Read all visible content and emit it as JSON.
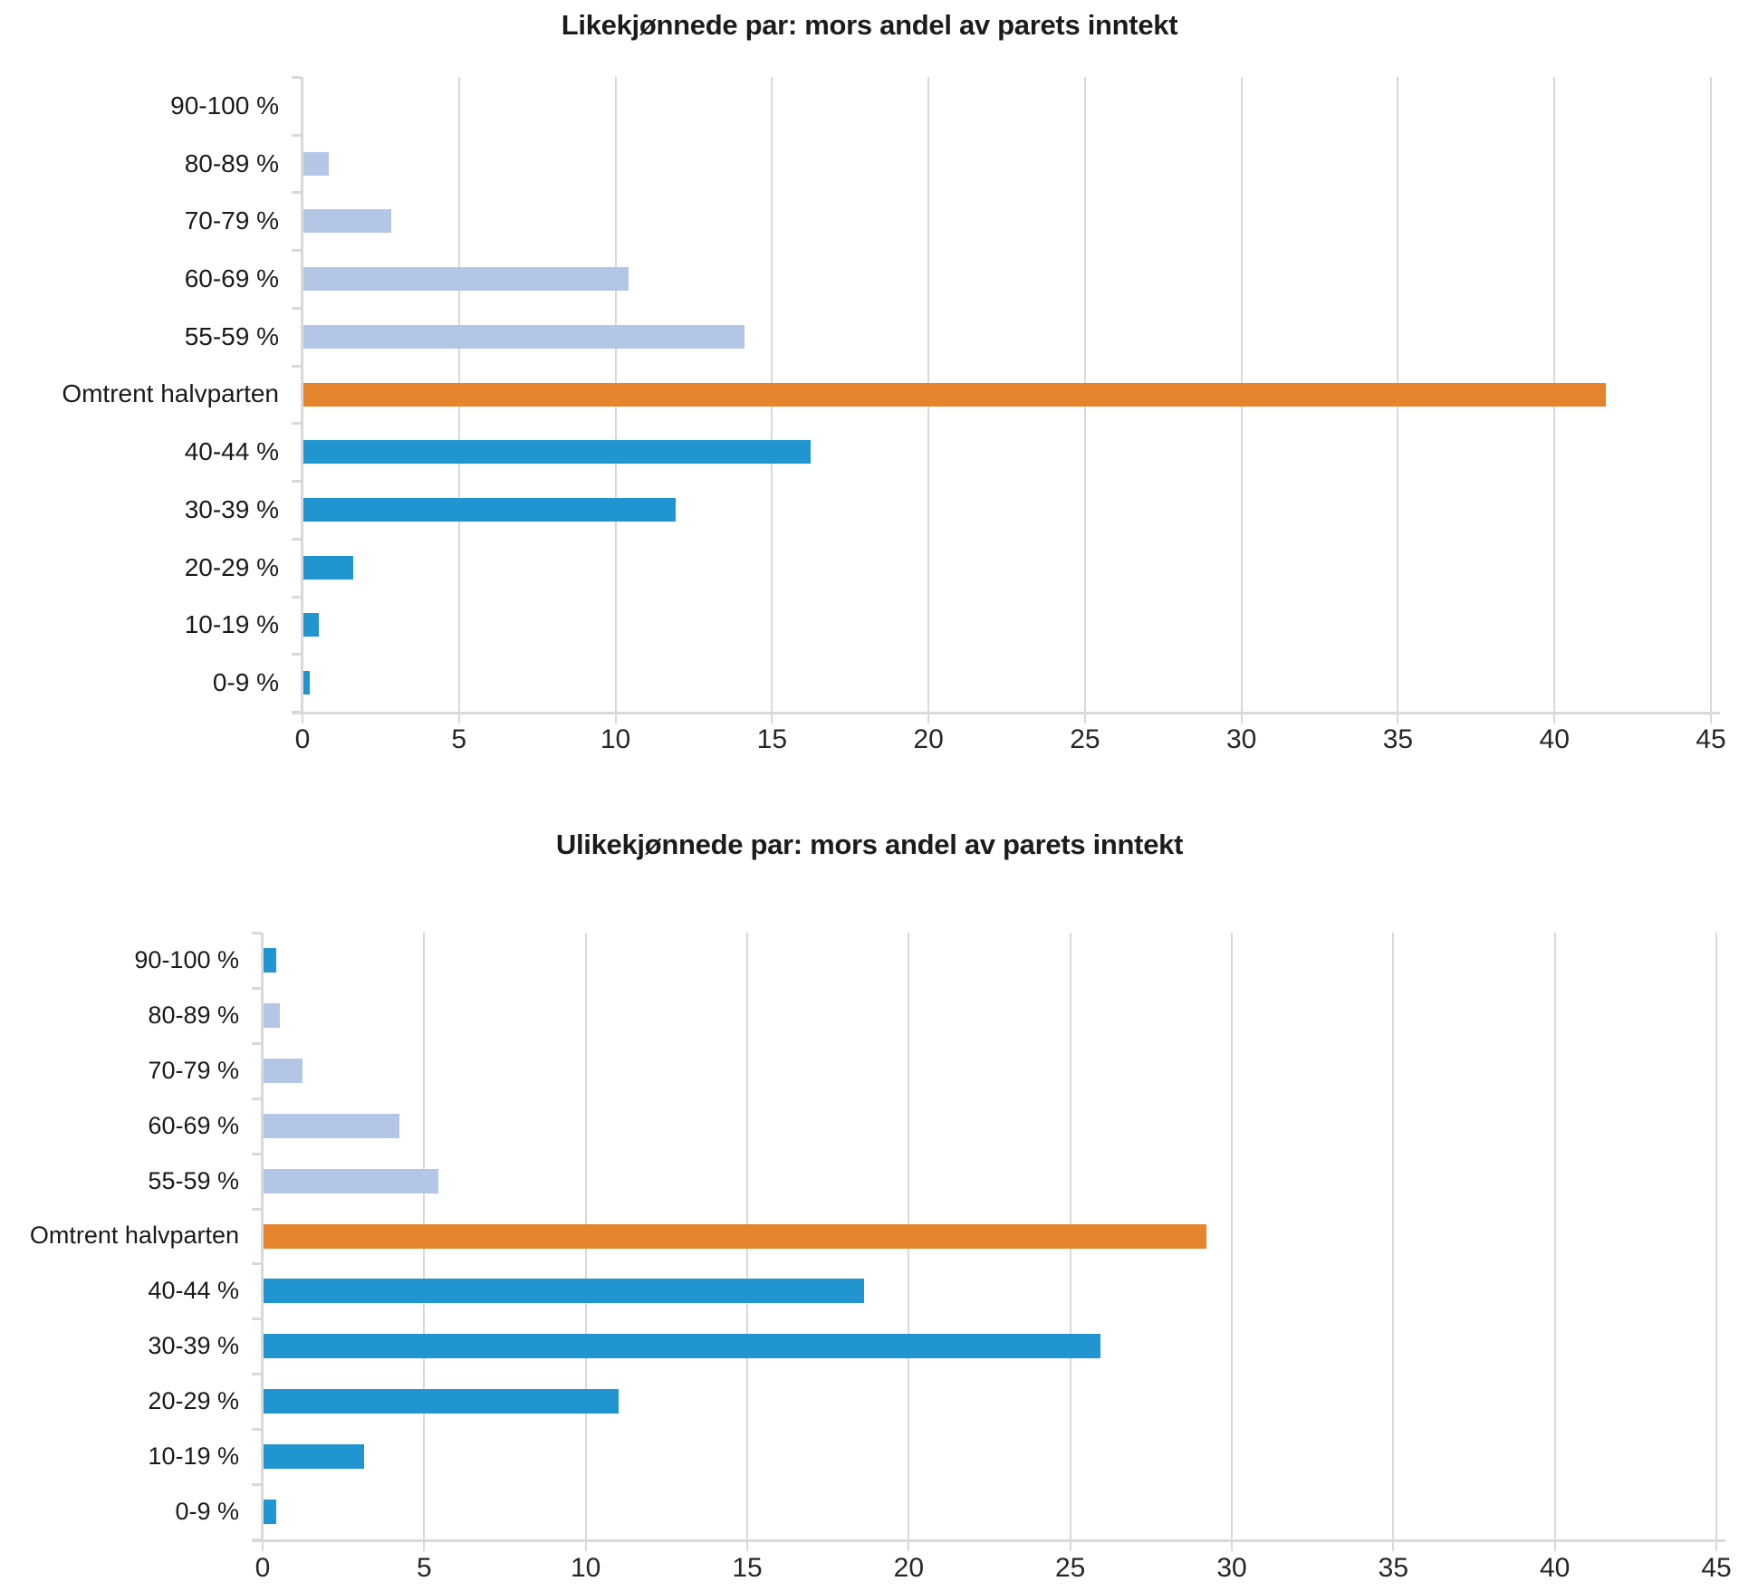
{
  "page": {
    "background": "#ffffff"
  },
  "palette": {
    "light_blue": "#b4c6e6",
    "orange": "#e6832d",
    "blue": "#2095d0",
    "axis_gray": "#d9d9d9",
    "text_dark": "#1a1a1a"
  },
  "chart_data": [
    {
      "type": "bar",
      "orientation": "horizontal",
      "title": "Likekjønnede par: mors andel av parets inntekt",
      "categories": [
        "90-100 %",
        "80-89 %",
        "70-79 %",
        "60-69 %",
        "55-59 %",
        "Omtrent halvparten",
        "40-44 %",
        "30-39 %",
        "20-29 %",
        "10-19 %",
        "0-9 %"
      ],
      "values": [
        0,
        0.8,
        2.8,
        10.4,
        14.1,
        41.6,
        16.2,
        11.9,
        1.6,
        0.5,
        0.2
      ],
      "bar_color_keys": [
        "light_blue",
        "light_blue",
        "light_blue",
        "light_blue",
        "light_blue",
        "orange",
        "blue",
        "blue",
        "blue",
        "blue",
        "blue"
      ],
      "xlim": [
        0,
        45
      ],
      "x_ticks": [
        0,
        5,
        10,
        15,
        20,
        25,
        30,
        35,
        40,
        45
      ],
      "grid": "vertical",
      "legend": "none"
    },
    {
      "type": "bar",
      "orientation": "horizontal",
      "title": "Ulikekjønnede par: mors andel av parets inntekt",
      "categories": [
        "90-100 %",
        "80-89 %",
        "70-79 %",
        "60-69 %",
        "55-59 %",
        "Omtrent halvparten",
        "40-44 %",
        "30-39 %",
        "20-29 %",
        "10-19 %",
        "0-9 %"
      ],
      "values": [
        0.4,
        0.5,
        1.2,
        4.2,
        5.4,
        29.2,
        18.6,
        25.9,
        11.0,
        3.1,
        0.4
      ],
      "bar_color_keys": [
        "blue",
        "light_blue",
        "light_blue",
        "light_blue",
        "light_blue",
        "orange",
        "blue",
        "blue",
        "blue",
        "blue",
        "blue"
      ],
      "xlim": [
        0,
        45
      ],
      "x_ticks": [
        0,
        5,
        10,
        15,
        20,
        25,
        30,
        35,
        40,
        45
      ],
      "grid": "vertical",
      "legend": "none"
    }
  ]
}
